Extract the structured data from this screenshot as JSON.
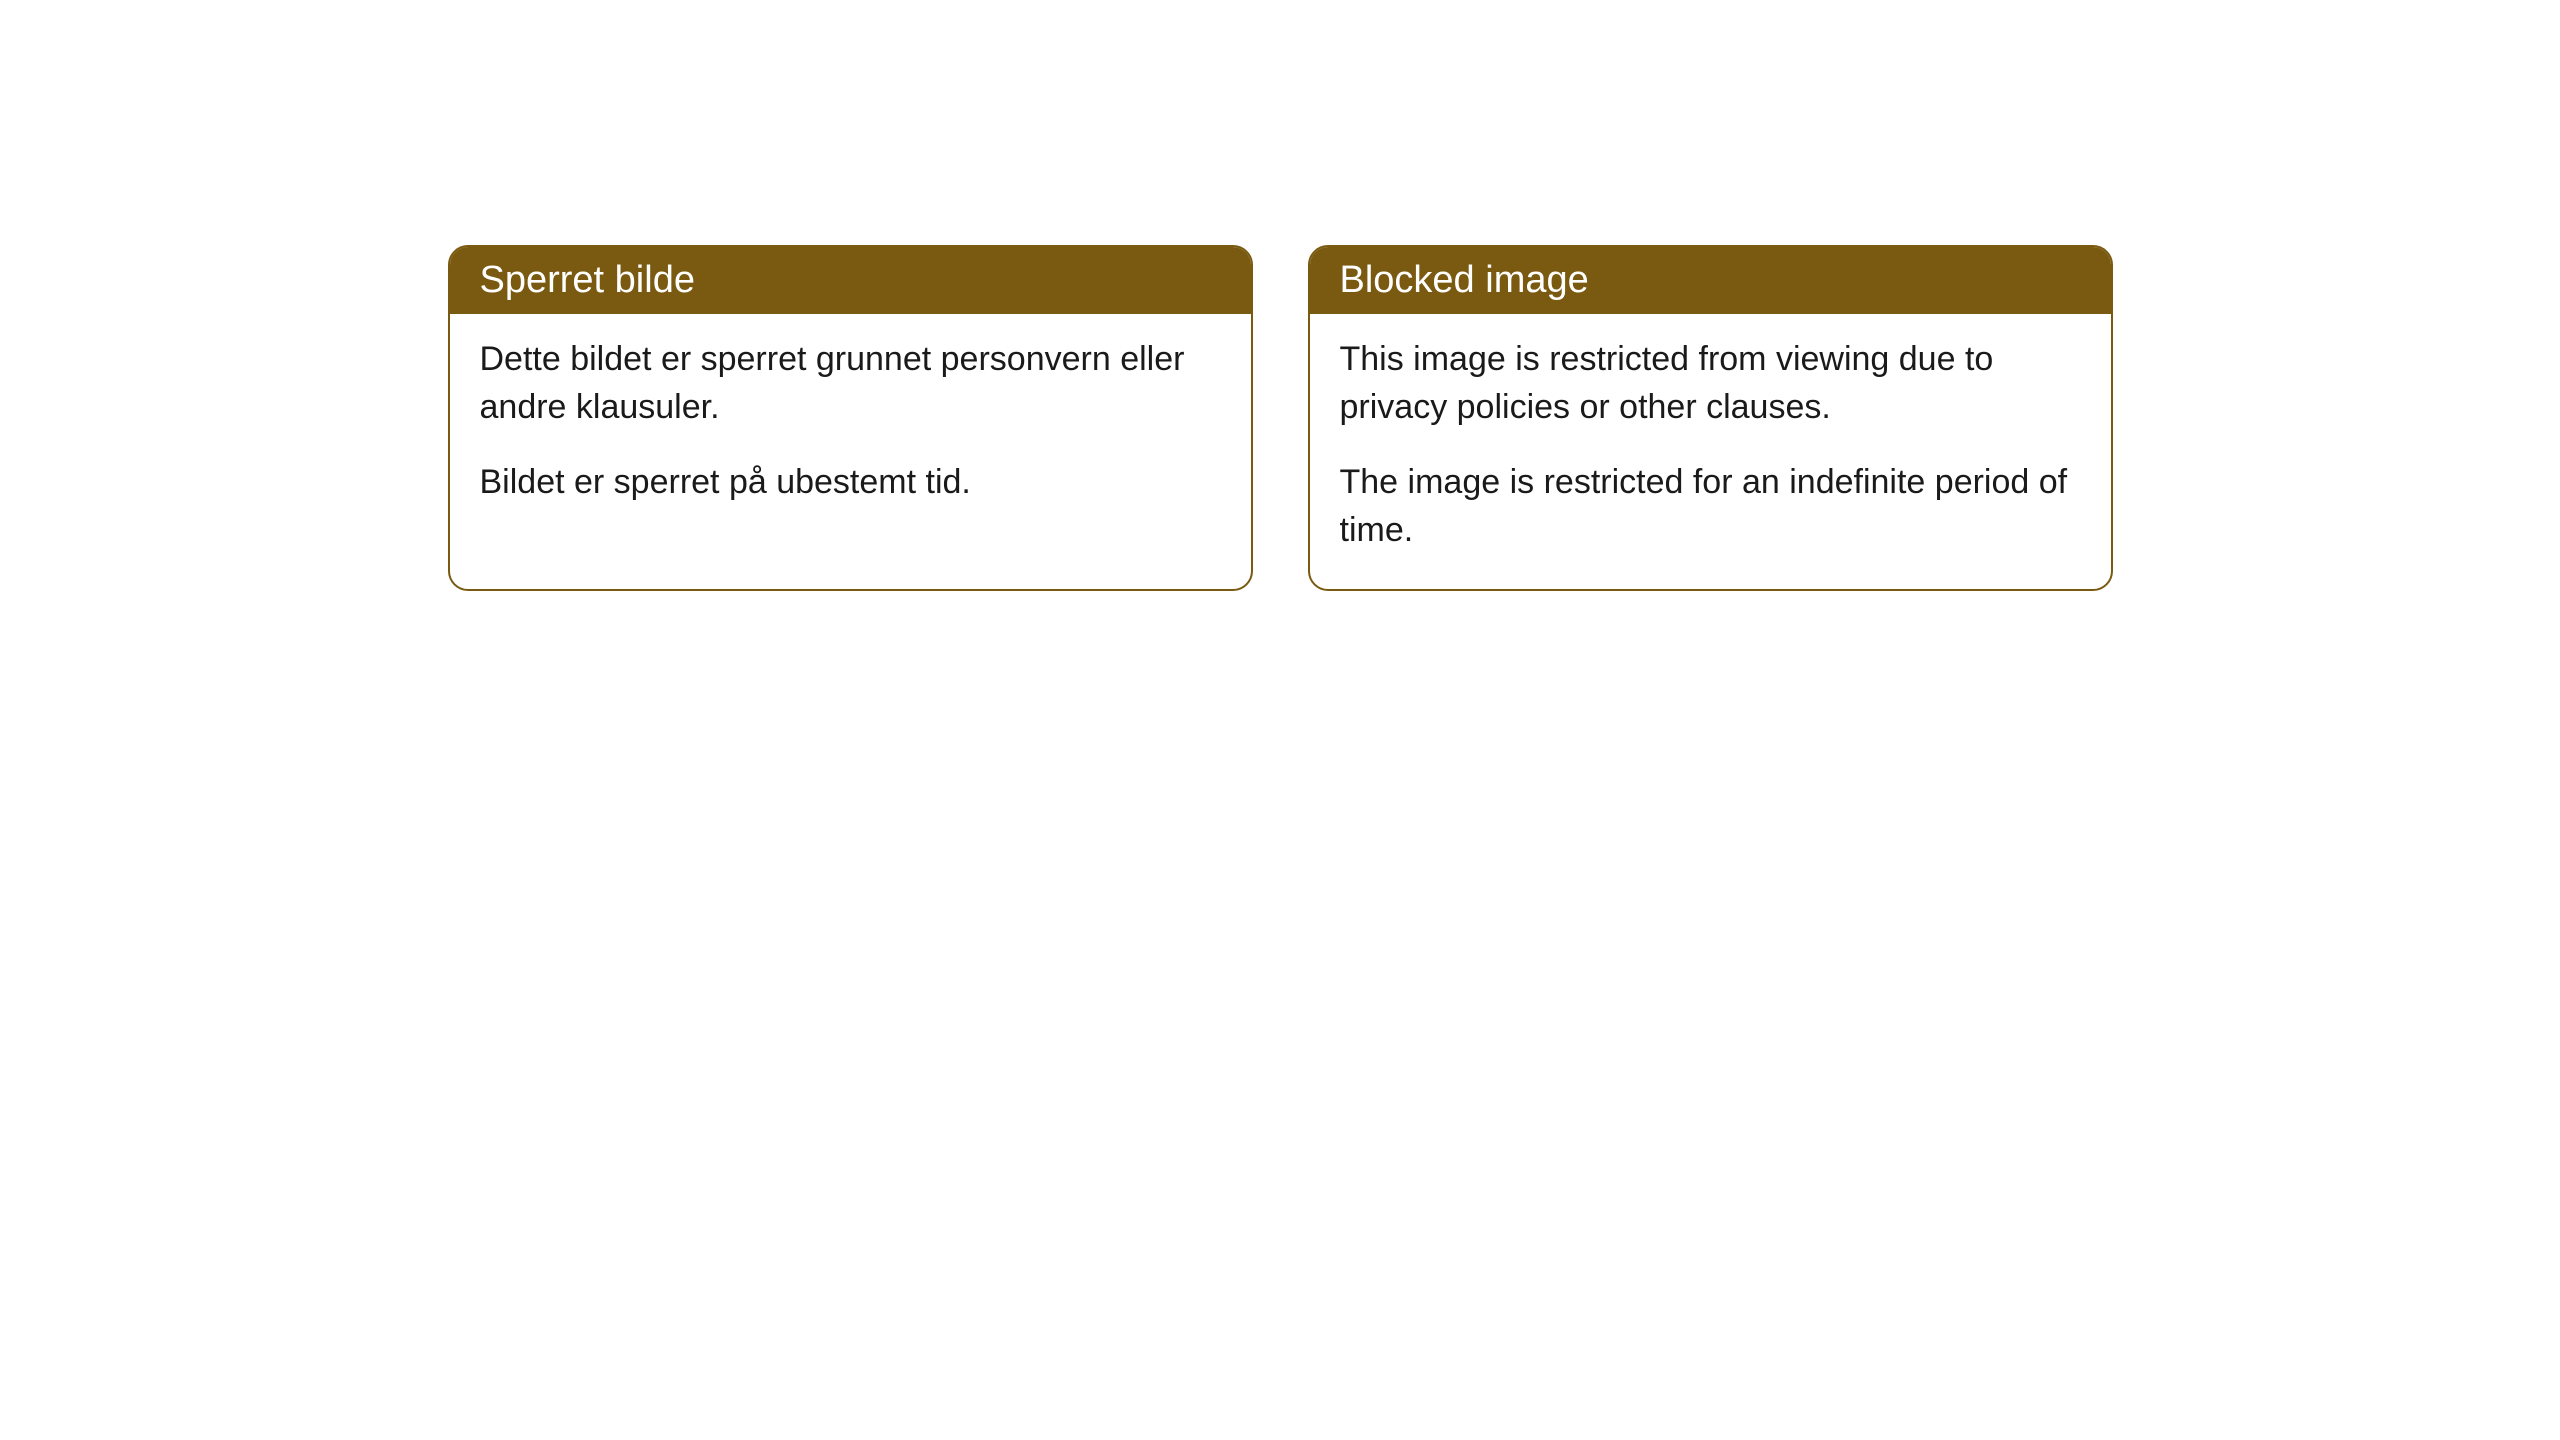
{
  "cards": [
    {
      "title": "Sperret bilde",
      "paragraph1": "Dette bildet er sperret grunnet personvern eller andre klausuler.",
      "paragraph2": "Bildet er sperret på ubestemt tid."
    },
    {
      "title": "Blocked image",
      "paragraph1": "This image is restricted from viewing due to privacy policies or other clauses.",
      "paragraph2": "The image is restricted for an indefinite period of time."
    }
  ],
  "styling": {
    "header_background_color": "#7a5a10",
    "header_text_color": "#ffffff",
    "border_color": "#7a5a10",
    "body_background_color": "#ffffff",
    "body_text_color": "#1a1a1a",
    "border_radius": 20,
    "header_fontsize": 38,
    "body_fontsize": 34
  }
}
